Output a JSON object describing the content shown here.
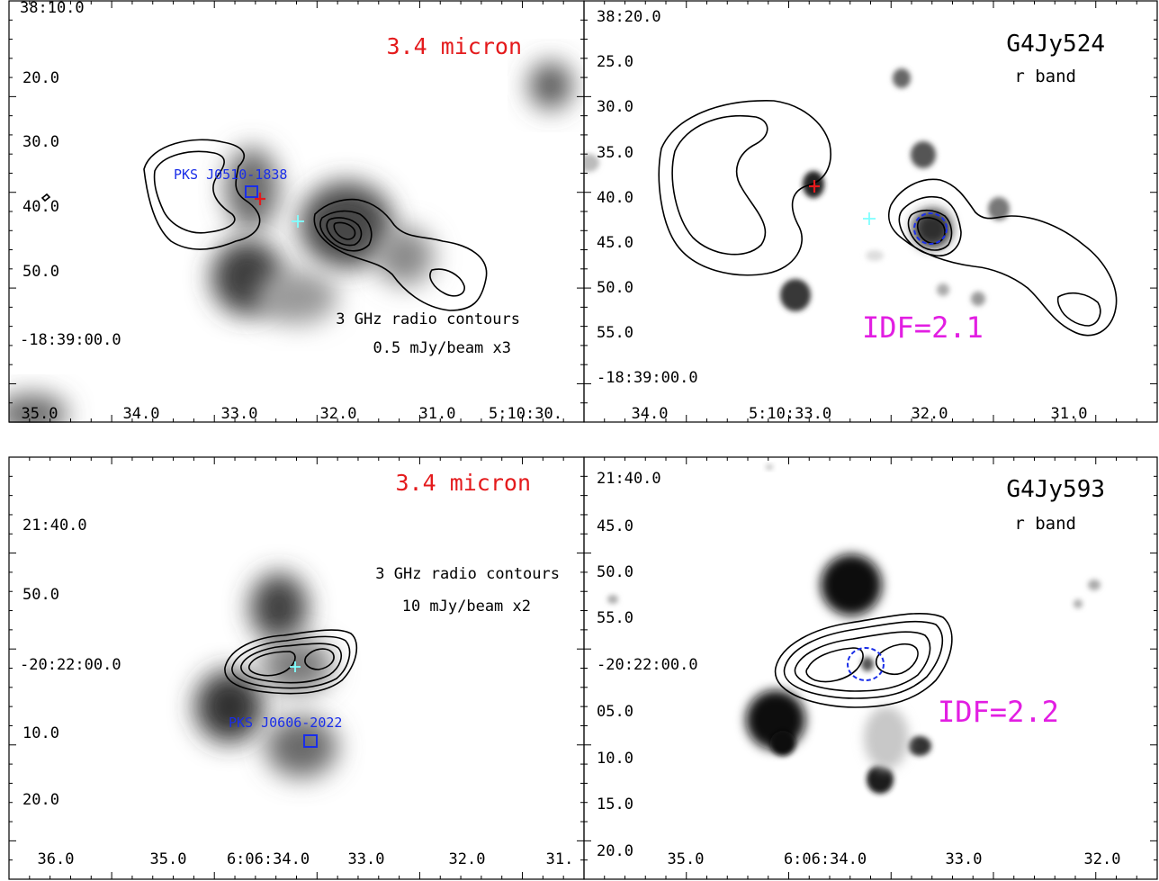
{
  "panels": [
    {
      "id": "top-left",
      "title": "3.4 micron",
      "contour_note_1": "3 GHz radio contours",
      "contour_note_2": "0.5 mJy/beam x3",
      "source_name": "PKS J0510-1838",
      "y_ticks": [
        "38:10.0",
        "20.0",
        "30.0",
        "40.0",
        "50.0",
        "-18:39:00.0"
      ],
      "x_ticks": [
        "35.0",
        "34.0",
        "33.0",
        "32.0",
        "31.0",
        "5:10:30."
      ]
    },
    {
      "id": "top-right",
      "title": "G4Jy524",
      "subtitle": "r band",
      "idf": "IDF=2.1",
      "y_ticks": [
        "38:20.0",
        "25.0",
        "30.0",
        "35.0",
        "40.0",
        "45.0",
        "50.0",
        "55.0",
        "-18:39:00.0"
      ],
      "x_ticks": [
        "34.0",
        "5:10:33.0",
        "32.0",
        "31.0"
      ]
    },
    {
      "id": "bottom-left",
      "title": "3.4 micron",
      "contour_note_1": "3 GHz radio contours",
      "contour_note_2": "10 mJy/beam x2",
      "source_name": "PKS J0606-2022",
      "y_ticks": [
        "21:40.0",
        "50.0",
        "-20:22:00.0",
        "10.0",
        "20.0"
      ],
      "x_ticks": [
        "36.0",
        "35.0",
        "6:06:34.0",
        "33.0",
        "32.0",
        "31."
      ]
    },
    {
      "id": "bottom-right",
      "title": "G4Jy593",
      "subtitle": "r band",
      "idf": "IDF=2.2",
      "y_ticks": [
        "21:40.0",
        "45.0",
        "50.0",
        "55.0",
        "-20:22:00.0",
        "05.0",
        "10.0",
        "15.0",
        "20.0"
      ],
      "x_ticks": [
        "35.0",
        "6:06:34.0",
        "33.0",
        "32.0"
      ]
    }
  ],
  "colors": {
    "ir_title": "#e41a1c",
    "source_label": "#1a2ee8",
    "idf_label": "#e21ee2",
    "host_marker": "#e41a1c",
    "midpoint_marker": "#7fffff"
  }
}
